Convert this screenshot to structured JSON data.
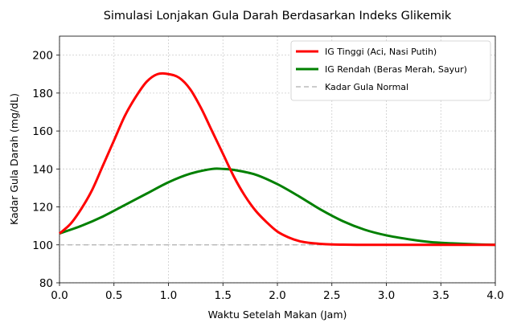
{
  "chart_data": {
    "type": "line",
    "title": "Simulasi Lonjakan Gula Darah Berdasarkan Indeks Glikemik",
    "xlabel": "Waktu Setelah Makan (Jam)",
    "ylabel": "Kadar Gula Darah (mg/dL)",
    "xlim": [
      0,
      4
    ],
    "ylim": [
      80,
      210
    ],
    "xticks": [
      0.0,
      0.5,
      1.0,
      1.5,
      2.0,
      2.5,
      3.0,
      3.5,
      4.0
    ],
    "xtick_labels": [
      "0.0",
      "0.5",
      "1.0",
      "1.5",
      "2.0",
      "2.5",
      "3.0",
      "3.5",
      "4.0"
    ],
    "yticks": [
      80,
      100,
      120,
      140,
      160,
      180,
      200
    ],
    "ytick_labels": [
      "80",
      "100",
      "120",
      "140",
      "160",
      "180",
      "200"
    ],
    "grid": true,
    "legend_position": "top-right",
    "series": [
      {
        "name": "IG Tinggi (Aci, Nasi Putih)",
        "color": "#ff0000",
        "style": "solid",
        "x": [
          0.0,
          0.1,
          0.2,
          0.3,
          0.4,
          0.5,
          0.6,
          0.7,
          0.8,
          0.9,
          1.0,
          1.1,
          1.2,
          1.3,
          1.4,
          1.5,
          1.6,
          1.7,
          1.8,
          1.9,
          2.0,
          2.1,
          2.2,
          2.3,
          2.4,
          2.5,
          2.6,
          2.8,
          3.0,
          3.2,
          3.4,
          3.6,
          3.8,
          4.0
        ],
        "y": [
          106,
          111,
          119,
          129,
          142,
          155,
          168,
          178,
          186,
          190,
          190,
          188,
          182,
          172,
          160,
          148,
          136,
          126,
          118,
          112,
          107,
          104,
          102,
          101,
          100.5,
          100.2,
          100.1,
          100,
          100,
          100,
          100,
          100,
          100,
          100
        ]
      },
      {
        "name": "IG Rendah (Beras Merah, Sayur)",
        "color": "#008000",
        "style": "solid",
        "x": [
          0.0,
          0.2,
          0.4,
          0.6,
          0.8,
          1.0,
          1.2,
          1.4,
          1.5,
          1.6,
          1.8,
          2.0,
          2.2,
          2.4,
          2.6,
          2.8,
          3.0,
          3.2,
          3.4,
          3.6,
          3.8,
          4.0
        ],
        "y": [
          106,
          110,
          115,
          121,
          127,
          133,
          137.5,
          140,
          140,
          139.5,
          137,
          132,
          125.5,
          118.5,
          112.5,
          108,
          105,
          103,
          101.5,
          100.8,
          100.3,
          100
        ]
      },
      {
        "name": "Kadar Gula Normal",
        "color": "#bbbbbb",
        "style": "dashed",
        "x": [
          0,
          4
        ],
        "y": [
          100,
          100
        ]
      }
    ]
  }
}
